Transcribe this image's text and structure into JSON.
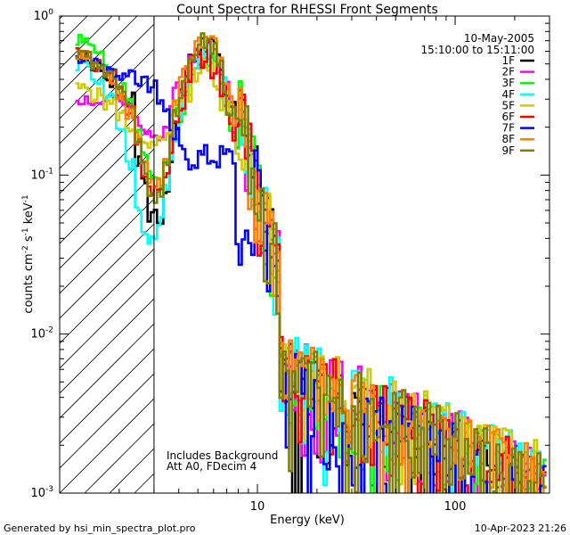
{
  "chart_data": {
    "type": "line",
    "title": "Count Spectra for RHESSI Front Segments",
    "date": "10-May-2005",
    "time_range": "15:10:00 to 15:11:00",
    "xlabel": "Energy (keV)",
    "ylabel": {
      "base": "counts cm",
      "exp1": "-2",
      "mid": " s",
      "exp2": "-1",
      "mid2": " keV",
      "exp3": "-1"
    },
    "xscale": "log",
    "yscale": "log",
    "xlim": [
      1,
      300
    ],
    "ylim": [
      0.001,
      1
    ],
    "x_tick_labels": [
      {
        "value": 10,
        "label": "10"
      },
      {
        "value": 100,
        "label": "100"
      }
    ],
    "y_tick_labels": [
      {
        "value": 1,
        "base": "10",
        "exp": "0"
      },
      {
        "value": 0.1,
        "base": "10",
        "exp": "-1"
      },
      {
        "value": 0.01,
        "base": "10",
        "exp": "-2"
      },
      {
        "value": 0.001,
        "base": "10",
        "exp": "-3"
      }
    ],
    "shaded_region": {
      "x_min": 1,
      "x_max": 3,
      "pattern": "diagonal-hatch"
    },
    "notes": [
      "Includes Background",
      "Att A0, FDecim 4"
    ],
    "legend_placement": "top-right",
    "series": [
      {
        "name": "1F",
        "color": "#000000",
        "peak": 0.6,
        "seed": 1,
        "lowE": [
          0.55,
          0.45,
          0.38,
          0.33,
          0.3,
          0.12,
          0.09,
          0.055,
          0.05,
          0.08,
          0.13,
          0.2
        ],
        "tailScale": 0.95
      },
      {
        "name": "2F",
        "color": "#ff00ff",
        "peak": 0.55,
        "seed": 2,
        "lowE": [
          0.3,
          0.28,
          0.3,
          0.28,
          0.26,
          0.22,
          0.2,
          0.19,
          0.18,
          0.2,
          0.28,
          0.35
        ],
        "tailScale": 1.05
      },
      {
        "name": "3F",
        "color": "#00ff00",
        "peak": 0.45,
        "seed": 3,
        "lowE": [
          0.7,
          0.6,
          0.45,
          0.35,
          0.28,
          0.2,
          0.13,
          0.1,
          0.09,
          0.12,
          0.18,
          0.26
        ],
        "tailScale": 1.0
      },
      {
        "name": "4F",
        "color": "#00ffff",
        "peak": 0.5,
        "seed": 4,
        "lowE": [
          0.5,
          0.4,
          0.3,
          0.2,
          0.12,
          0.06,
          0.045,
          0.04,
          0.05,
          0.08,
          0.12,
          0.18
        ],
        "tailScale": 1.1
      },
      {
        "name": "5F",
        "color": "#cccc00",
        "peak": 0.4,
        "seed": 5,
        "lowE": [
          0.35,
          0.32,
          0.28,
          0.24,
          0.2,
          0.17,
          0.15,
          0.15,
          0.16,
          0.18,
          0.22,
          0.28
        ],
        "tailScale": 1.15
      },
      {
        "name": "6F",
        "color": "#ff0000",
        "peak": 0.52,
        "seed": 6,
        "lowE": [
          0.6,
          0.5,
          0.42,
          0.33,
          0.25,
          0.15,
          0.1,
          0.08,
          0.08,
          0.1,
          0.15,
          0.22
        ],
        "tailScale": 1.0
      },
      {
        "name": "7F",
        "color": "#0000ff",
        "peak": 0.38,
        "seed": 7,
        "lowE": [
          0.55,
          0.5,
          0.45,
          0.42,
          0.45,
          0.4,
          0.38,
          0.36,
          0.3,
          0.25,
          0.2,
          0.18
        ],
        "tailScale": 0.85
      },
      {
        "name": "8F",
        "color": "#ff8000",
        "peak": 0.65,
        "seed": 8,
        "lowE": [
          0.55,
          0.48,
          0.4,
          0.32,
          0.25,
          0.18,
          0.12,
          0.09,
          0.09,
          0.12,
          0.18,
          0.27
        ],
        "tailScale": 1.05
      },
      {
        "name": "9F",
        "color": "#808000",
        "peak": 0.62,
        "seed": 9,
        "lowE": [
          0.58,
          0.5,
          0.42,
          0.33,
          0.26,
          0.17,
          0.11,
          0.07,
          0.08,
          0.11,
          0.17,
          0.25
        ],
        "tailScale": 1.0
      }
    ]
  },
  "footer": {
    "left": "Generated by hsi_min_spectra_plot.pro",
    "right": "10-Apr-2023 21:26"
  }
}
